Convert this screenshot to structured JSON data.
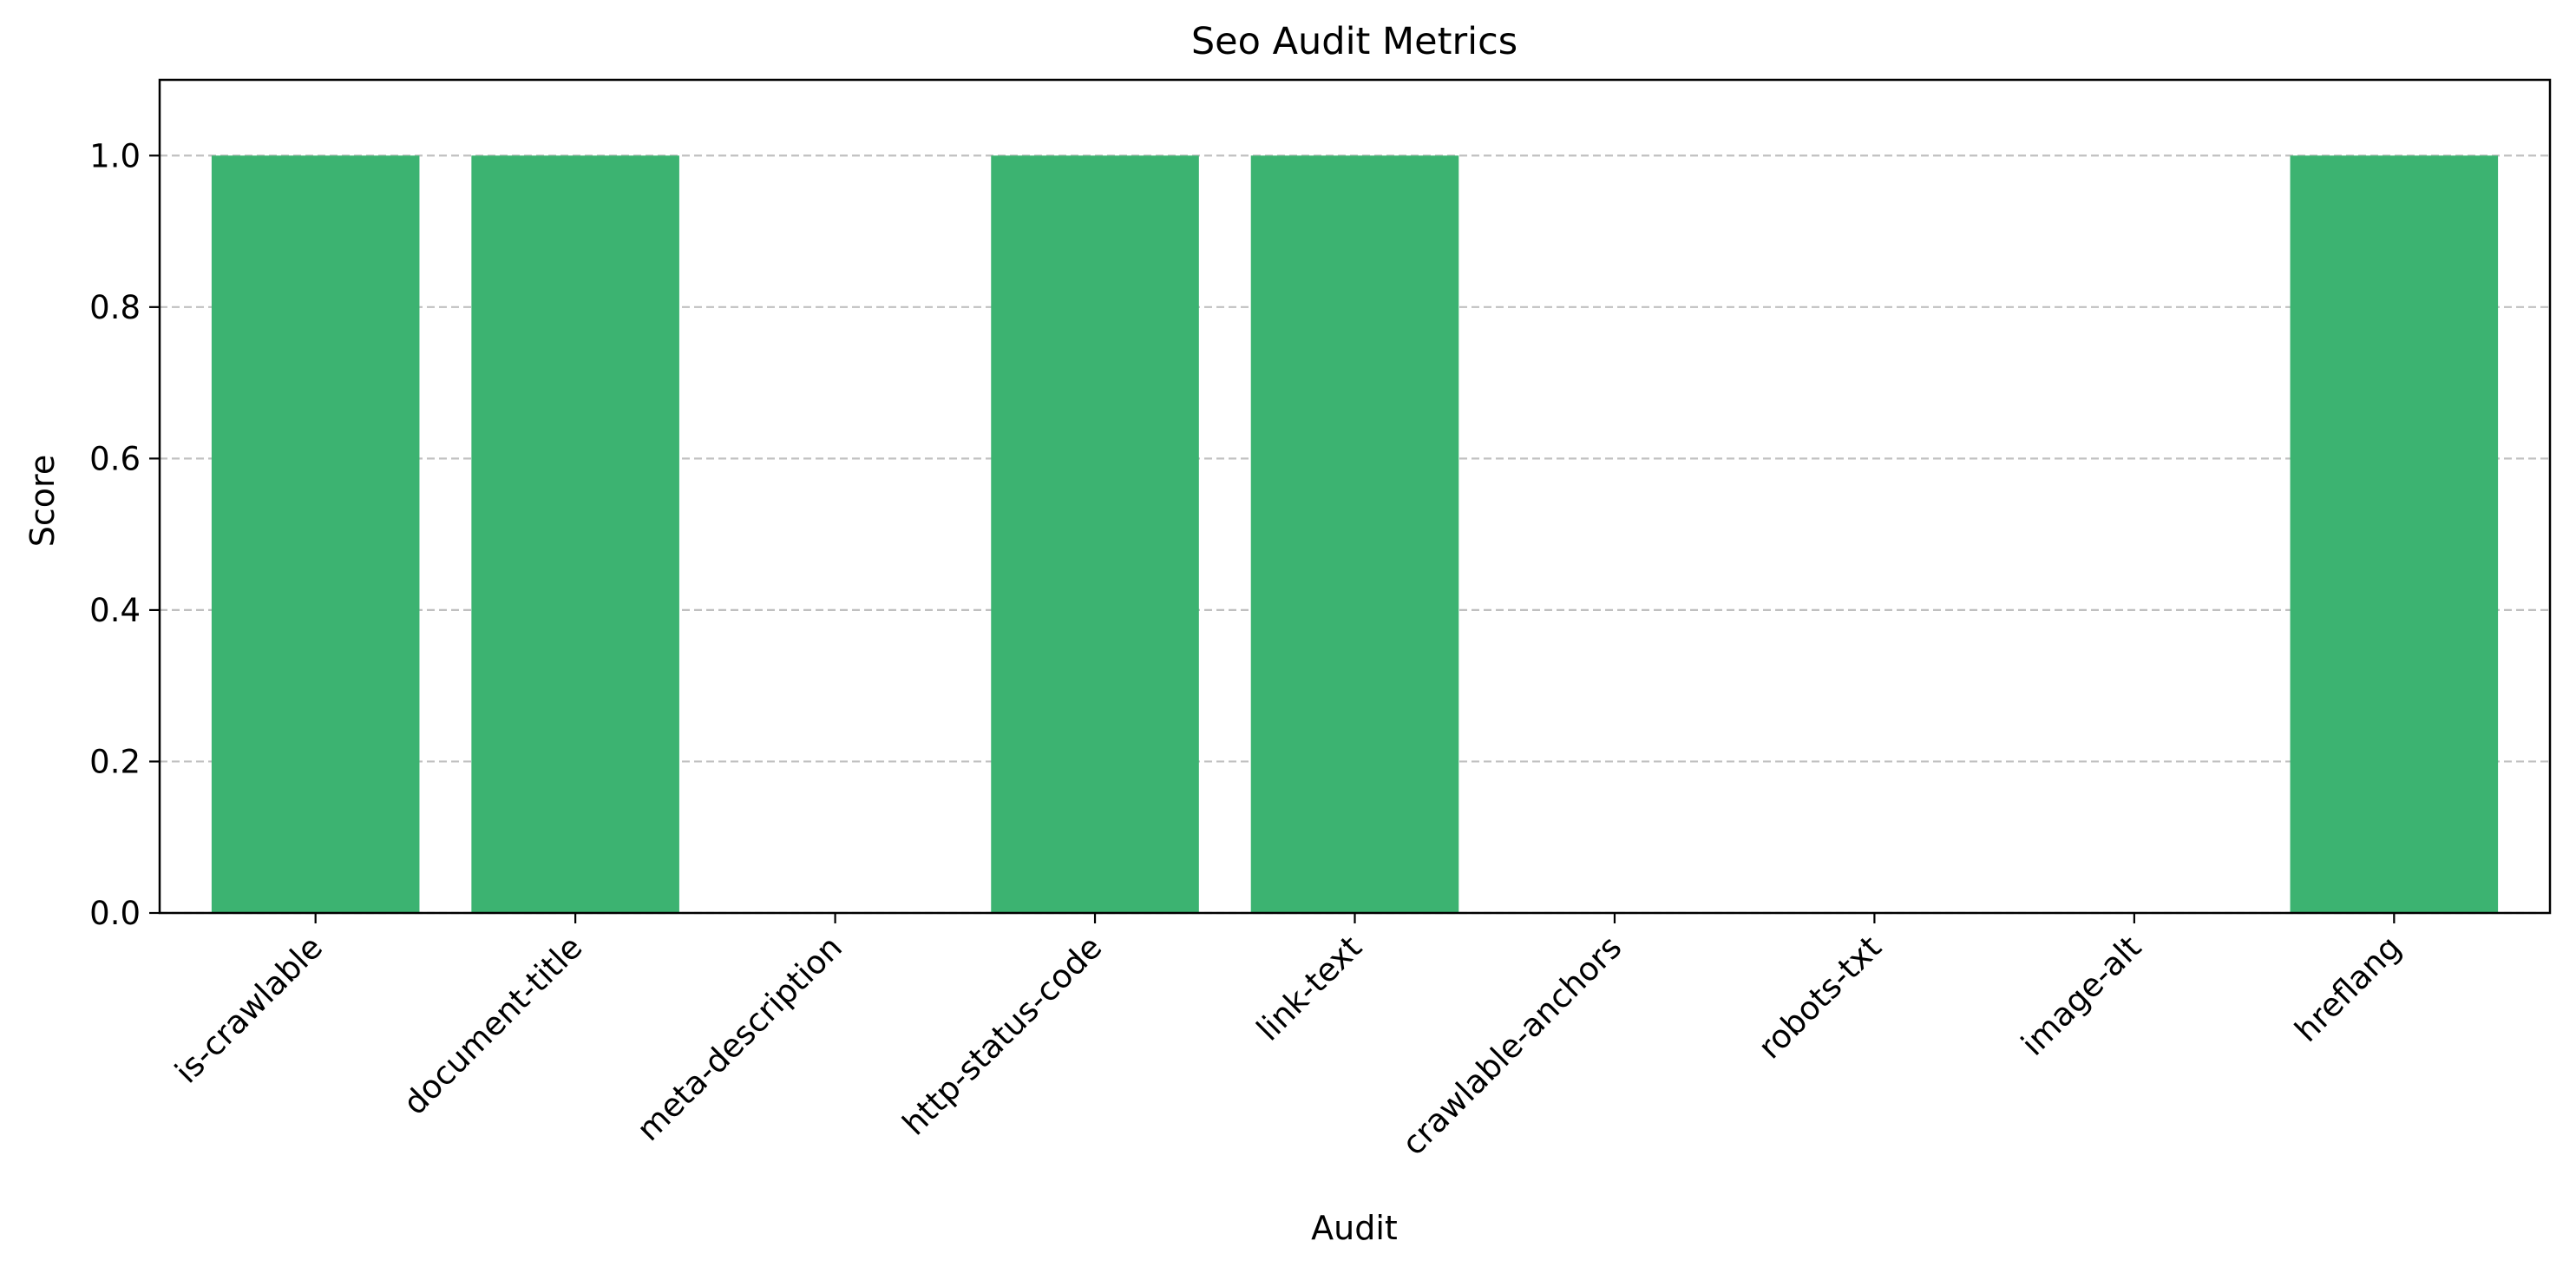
{
  "chart_data": {
    "type": "bar",
    "title": "Seo Audit Metrics",
    "xlabel": "Audit",
    "ylabel": "Score",
    "categories": [
      "is-crawlable",
      "document-title",
      "meta-description",
      "http-status-code",
      "link-text",
      "crawlable-anchors",
      "robots-txt",
      "image-alt",
      "hreflang"
    ],
    "values": [
      1.0,
      1.0,
      0.0,
      1.0,
      1.0,
      0.0,
      0.0,
      0.0,
      1.0
    ],
    "ylim": [
      0,
      1.1
    ],
    "yticks": [
      0.0,
      0.2,
      0.4,
      0.6,
      0.8,
      1.0
    ],
    "ytick_labels": [
      "0.0",
      "0.2",
      "0.4",
      "0.6",
      "0.8",
      "1.0"
    ],
    "grid": "y-dashed",
    "colors": {
      "bar": "#3cb371",
      "grid": "#c0c0c0",
      "axis": "#000000"
    }
  }
}
